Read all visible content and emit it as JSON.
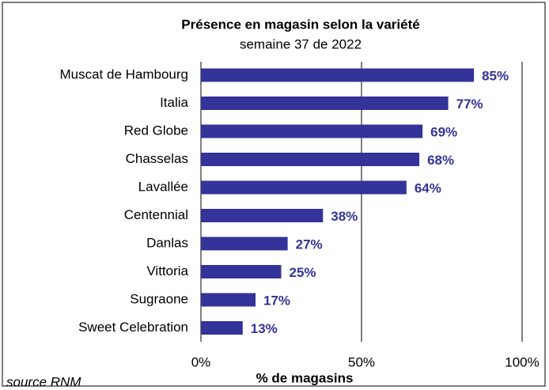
{
  "chart_data": {
    "type": "bar",
    "orientation": "horizontal",
    "title": "Présence en magasin selon la variété",
    "subtitle": "semaine 37 de 2022",
    "x_label": "% de magasins",
    "source": "source RNM",
    "categories": [
      "Muscat de Hambourg",
      "Italia",
      "Red Globe",
      "Chasselas",
      "Lavallée",
      "Centennial",
      "Danlas",
      "Vittoria",
      "Sugraone",
      "Sweet Celebration"
    ],
    "values": [
      85,
      77,
      69,
      68,
      64,
      38,
      27,
      25,
      17,
      13
    ],
    "value_labels": [
      "85%",
      "77%",
      "69%",
      "68%",
      "64%",
      "38%",
      "27%",
      "25%",
      "17%",
      "13%"
    ],
    "color": "#333399",
    "xlim": [
      0,
      100
    ],
    "xticks": [
      {
        "value": 0,
        "label": "0%"
      },
      {
        "value": 50,
        "label": "50%"
      },
      {
        "value": 100,
        "label": "100%"
      }
    ],
    "grid": true
  }
}
